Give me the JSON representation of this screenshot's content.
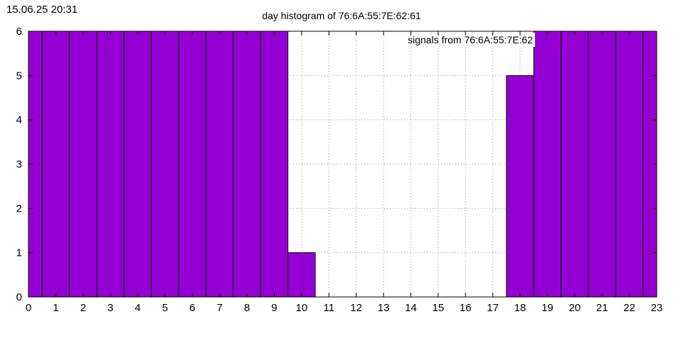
{
  "timestamp": "15.06.25 20:31",
  "chart_data": {
    "type": "bar",
    "title": "day histogram of 76:6A:55:7E:62:61",
    "xlabel": "",
    "ylabel": "",
    "legend": {
      "label": "signals from 76:6A:55:7E:62",
      "placement": "top-right"
    },
    "categories": [
      "0",
      "1",
      "2",
      "3",
      "4",
      "5",
      "6",
      "7",
      "8",
      "9",
      "10",
      "11",
      "12",
      "13",
      "14",
      "15",
      "16",
      "17",
      "18",
      "19",
      "20",
      "21",
      "22",
      "23"
    ],
    "values": [
      6,
      6,
      6,
      6,
      6,
      6,
      6,
      6,
      6,
      6,
      1,
      0,
      0,
      0,
      0,
      0,
      0,
      0,
      5,
      6,
      6,
      6,
      6,
      6
    ],
    "xlim": [
      0,
      23
    ],
    "ylim": [
      0,
      6
    ],
    "yticks": [
      "0",
      "1",
      "2",
      "3",
      "4",
      "5",
      "6"
    ],
    "grid": true,
    "bar_color": "#9400d3"
  }
}
